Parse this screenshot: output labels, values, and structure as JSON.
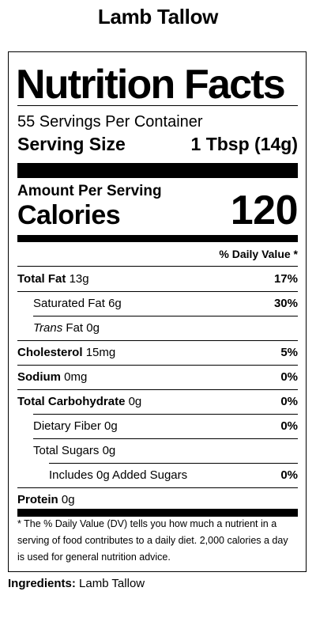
{
  "product_title": "Lamb Tallow",
  "label": {
    "heading": "Nutrition Facts",
    "servings_per_container": "55 Servings Per Container",
    "serving_size_label": "Serving Size",
    "serving_size_value": "1 Tbsp (14g)",
    "amount_per_serving": "Amount Per Serving",
    "calories_label": "Calories",
    "calories_value": "120",
    "daily_value_header": "% Daily Value *",
    "nutrients": [
      {
        "name": "Total Fat",
        "amount": "13g",
        "dv": "17%"
      },
      {
        "name": "Saturated Fat",
        "amount": "6g",
        "dv": "30%"
      },
      {
        "name": "Trans",
        "suffix": "Fat",
        "amount": "0g",
        "dv": ""
      },
      {
        "name": "Cholesterol",
        "amount": "15mg",
        "dv": "5%"
      },
      {
        "name": "Sodium",
        "amount": "0mg",
        "dv": "0%"
      },
      {
        "name": "Total Carbohydrate",
        "amount": "0g",
        "dv": "0%"
      },
      {
        "name": "Dietary Fiber",
        "amount": "0g",
        "dv": "0%"
      },
      {
        "name": "Total Sugars",
        "amount": "0g",
        "dv": ""
      },
      {
        "name": "Includes 0g Added Sugars",
        "amount": "",
        "dv": "0%"
      },
      {
        "name": "Protein",
        "amount": "0g",
        "dv": ""
      }
    ],
    "footnote": "* The % Daily Value (DV) tells you how much a nutrient in a serving of food contributes to a daily diet. 2,000 calories a day is used for general nutrition advice."
  },
  "ingredients": {
    "label": "Ingredients:",
    "value": "Lamb Tallow"
  }
}
